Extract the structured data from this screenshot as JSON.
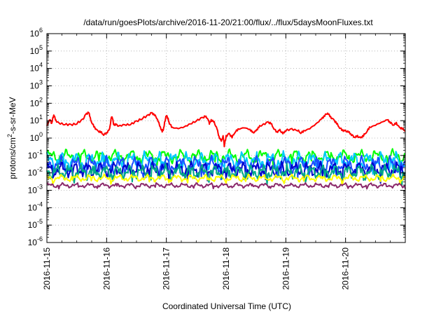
{
  "chart_data": {
    "type": "line",
    "title": "/data/run/goesPlots/archive/2016-11-20/21:00/flux/../flux/5daysMoonFluxes.txt",
    "xlabel": "Coordinated Universal Time (UTC)",
    "ylabel": {
      "base": "protons/cm",
      "sup": "2",
      "rest": "-s-sr-MeV"
    },
    "yscale": "log",
    "ylim_exp": [
      -6,
      6
    ],
    "y_ticks": [
      {
        "base": "10",
        "exp": "6"
      },
      {
        "base": "10",
        "exp": "5"
      },
      {
        "base": "10",
        "exp": "4"
      },
      {
        "base": "10",
        "exp": "3"
      },
      {
        "base": "10",
        "exp": "2"
      },
      {
        "base": "10",
        "exp": "1"
      },
      {
        "base": "10",
        "exp": "0"
      },
      {
        "base": "10",
        "exp": "-1"
      },
      {
        "base": "10",
        "exp": "-2"
      },
      {
        "base": "10",
        "exp": "-3"
      },
      {
        "base": "10",
        "exp": "-4"
      },
      {
        "base": "10",
        "exp": "-5"
      },
      {
        "base": "10",
        "exp": "-6"
      }
    ],
    "x_ticks": [
      "2016-11-15",
      "2016-11-16",
      "2016-11-17",
      "2016-11-18",
      "2016-11-19",
      "2016-11-20"
    ],
    "xlim_days": [
      0,
      6.0
    ],
    "grid": true,
    "series": [
      {
        "color": "#ff0000",
        "points": [
          [
            0,
            0.7
          ],
          [
            0.05,
            1.1
          ],
          [
            0.08,
            0.8
          ],
          [
            0.1,
            1.2
          ],
          [
            0.12,
            1.3
          ],
          [
            0.15,
            1.0
          ],
          [
            0.2,
            0.85
          ],
          [
            0.3,
            0.8
          ],
          [
            0.4,
            0.75
          ],
          [
            0.5,
            0.85
          ],
          [
            0.6,
            1.05
          ],
          [
            0.65,
            1.35
          ],
          [
            0.7,
            1.5
          ],
          [
            0.72,
            1.2
          ],
          [
            0.75,
            0.9
          ],
          [
            0.8,
            0.6
          ],
          [
            0.85,
            0.4
          ],
          [
            0.9,
            0.35
          ],
          [
            0.95,
            0.2
          ],
          [
            1.0,
            0.3
          ],
          [
            1.05,
            0.5
          ],
          [
            1.08,
            1.25
          ],
          [
            1.1,
            1.1
          ],
          [
            1.12,
            0.75
          ],
          [
            1.15,
            0.8
          ],
          [
            1.2,
            0.7
          ],
          [
            1.3,
            0.75
          ],
          [
            1.4,
            0.8
          ],
          [
            1.5,
            0.95
          ],
          [
            1.6,
            1.15
          ],
          [
            1.7,
            1.3
          ],
          [
            1.75,
            1.45
          ],
          [
            1.8,
            1.35
          ],
          [
            1.85,
            1.1
          ],
          [
            1.9,
            0.6
          ],
          [
            1.93,
            0.4
          ],
          [
            1.95,
            0.45
          ],
          [
            1.97,
            0.9
          ],
          [
            2.0,
            1.3
          ],
          [
            2.03,
            1.1
          ],
          [
            2.05,
            0.85
          ],
          [
            2.1,
            0.6
          ],
          [
            2.2,
            0.55
          ],
          [
            2.3,
            0.65
          ],
          [
            2.4,
            0.8
          ],
          [
            2.5,
            1.0
          ],
          [
            2.6,
            1.15
          ],
          [
            2.65,
            1.25
          ],
          [
            2.7,
            1.1
          ],
          [
            2.72,
            0.8
          ],
          [
            2.75,
            1.05
          ],
          [
            2.8,
            0.9
          ],
          [
            2.85,
            0.5
          ],
          [
            2.88,
            0.1
          ],
          [
            2.92,
            -0.2
          ],
          [
            2.95,
            0.15
          ],
          [
            2.97,
            -0.45
          ],
          [
            3.0,
            0.1
          ],
          [
            3.05,
            0.25
          ],
          [
            3.1,
            0.05
          ],
          [
            3.15,
            0.35
          ],
          [
            3.2,
            0.5
          ],
          [
            3.3,
            0.6
          ],
          [
            3.4,
            0.5
          ],
          [
            3.45,
            0.3
          ],
          [
            3.5,
            0.4
          ],
          [
            3.55,
            0.65
          ],
          [
            3.6,
            0.75
          ],
          [
            3.7,
            0.9
          ],
          [
            3.75,
            0.85
          ],
          [
            3.8,
            0.55
          ],
          [
            3.85,
            0.35
          ],
          [
            3.9,
            0.45
          ],
          [
            3.95,
            0.25
          ],
          [
            4.0,
            0.45
          ],
          [
            4.1,
            0.5
          ],
          [
            4.2,
            0.45
          ],
          [
            4.25,
            0.3
          ],
          [
            4.3,
            0.4
          ],
          [
            4.4,
            0.55
          ],
          [
            4.5,
            0.8
          ],
          [
            4.6,
            1.1
          ],
          [
            4.65,
            1.3
          ],
          [
            4.7,
            1.45
          ],
          [
            4.75,
            1.2
          ],
          [
            4.8,
            1.05
          ],
          [
            4.85,
            0.85
          ],
          [
            4.9,
            0.6
          ],
          [
            4.95,
            0.45
          ],
          [
            5.0,
            0.4
          ],
          [
            5.05,
            0.35
          ],
          [
            5.1,
            0.2
          ],
          [
            5.15,
            0.05
          ],
          [
            5.2,
            0.1
          ],
          [
            5.25,
            0.0
          ],
          [
            5.3,
            0.15
          ],
          [
            5.35,
            0.35
          ],
          [
            5.4,
            0.6
          ],
          [
            5.5,
            0.75
          ],
          [
            5.6,
            0.9
          ],
          [
            5.7,
            1.05
          ],
          [
            5.75,
            0.9
          ],
          [
            5.8,
            0.75
          ],
          [
            5.85,
            0.85
          ],
          [
            5.9,
            0.6
          ],
          [
            5.95,
            0.55
          ],
          [
            6.0,
            0.4
          ]
        ]
      },
      {
        "color": "#00ff00",
        "base": -1.05,
        "amp": 0.22,
        "freq": 23.0,
        "phase": 0.3
      },
      {
        "color": "#00c8ff",
        "base": -1.3,
        "amp": 0.3,
        "freq": 27.0,
        "phase": 1.1
      },
      {
        "color": "#1a4dff",
        "base": -1.55,
        "amp": 0.3,
        "freq": 25.0,
        "phase": 2.0
      },
      {
        "color": "#0000cc",
        "base": -1.8,
        "amp": 0.25,
        "freq": 29.0,
        "phase": 0.7
      },
      {
        "color": "#00aa88",
        "base": -1.95,
        "amp": 0.25,
        "freq": 31.0,
        "phase": 2.6
      },
      {
        "color": "#ffff00",
        "base": -2.3,
        "amp": 0.12,
        "freq": 26.0,
        "phase": 1.7
      },
      {
        "color": "#8b2a6b",
        "base": -2.72,
        "amp": 0.08,
        "freq": 28.0,
        "phase": 0.4
      }
    ]
  }
}
